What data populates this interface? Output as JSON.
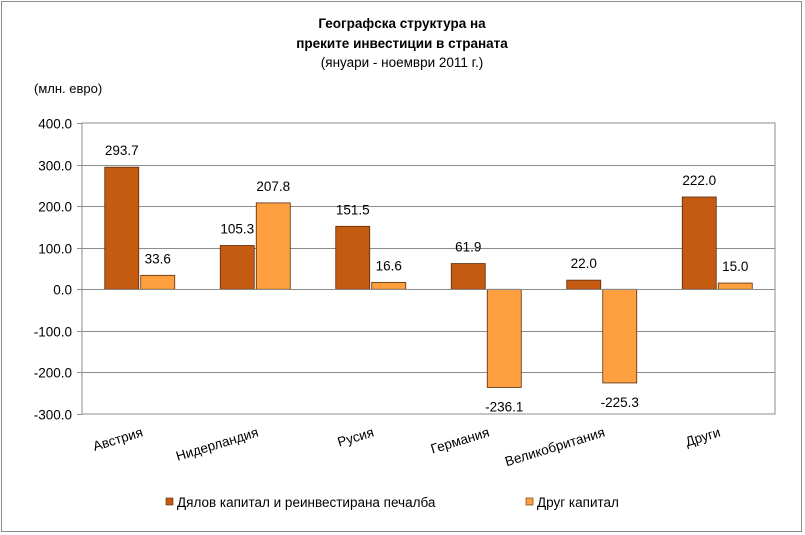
{
  "chart_data": {
    "type": "bar",
    "title_lines": [
      "Географска структура  на",
      "преките инвестиции  в страната"
    ],
    "subtitle": "(януари  - ноември 2011 г.)",
    "ylabel": "(млн. евро)",
    "ylim": [
      -300,
      400
    ],
    "yticks": [
      400,
      300,
      200,
      100,
      0,
      -100,
      -200,
      -300
    ],
    "ytick_labels": [
      "400.0",
      "300.0",
      "200.0",
      "100.0",
      "0.0",
      "-100.0",
      "-200.0",
      "-300.0"
    ],
    "grid": true,
    "categories": [
      "Австрия",
      "Нидерландия",
      "Русия",
      "Германия",
      "Великобритания",
      "Други"
    ],
    "series": [
      {
        "name": "Дялов капитал и реинвестирана печалба",
        "color": "#c55a11",
        "values": [
          293.7,
          105.3,
          151.5,
          61.9,
          22.0,
          222.0
        ],
        "labels": [
          "293.7",
          "105.3",
          "151.5",
          "61.9",
          "22.0",
          "222.0"
        ]
      },
      {
        "name": "Друг капитал",
        "color": "#ffa040",
        "values": [
          33.6,
          207.8,
          16.6,
          -236.1,
          -225.3,
          15.0
        ],
        "labels": [
          "33.6",
          "207.8",
          "16.6",
          "-236.1",
          "-225.3",
          "15.0"
        ]
      }
    ],
    "legend_position": "bottom"
  }
}
